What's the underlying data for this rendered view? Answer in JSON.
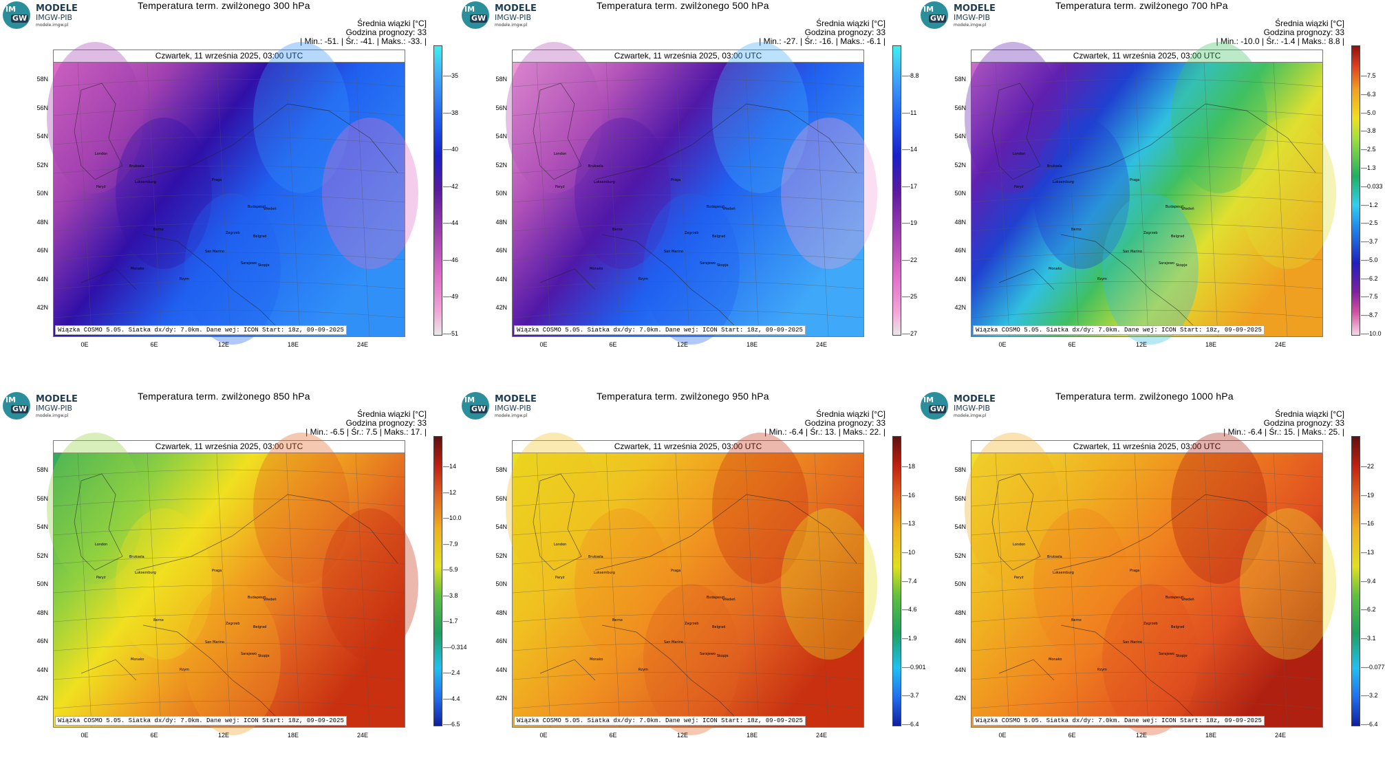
{
  "logo": {
    "badge_top": "IM",
    "badge_bottom": "GW",
    "name": "MODELE",
    "org": "IMGW-PIB",
    "url": "modele.imgw.pl"
  },
  "labels": {
    "mean_label": "Średnia wiązki [°C]",
    "forecast_hour": "Godzina prognozy: 33",
    "date": "Czwartek, 11 września 2025, 03:00 UTC",
    "footer": "Wiązka COSMO 5.05. Siatka dx/dy: 7.0km. Dane wej: ICON Start: 18z, 09-09-2025"
  },
  "axes": {
    "lat": [
      "58N",
      "56N",
      "54N",
      "52N",
      "50N",
      "48N",
      "46N",
      "44N",
      "42N"
    ],
    "lon": [
      "0E",
      "6E",
      "12E",
      "18E",
      "24E"
    ]
  },
  "cities": [
    "London",
    "Brukselа",
    "Paryż",
    "Luksemburg",
    "Praga",
    "Wiedeń",
    "Budapeszt",
    "Berno",
    "Zagrzeb",
    "Belgrad",
    "Monako",
    "San Marino",
    "Sarajewo",
    "Rzym",
    "Skopje"
  ],
  "panels": [
    {
      "title": "Temperatura term. zwilżonego 300 hPa",
      "stats": "| Min.:   -51. | Śr.:   -41. | Maks.:   -33. |",
      "scale": "cool",
      "ticks": [
        "-35",
        "-38",
        "-40",
        "-42",
        "-44",
        "-46",
        "-49",
        "-51"
      ]
    },
    {
      "title": "Temperatura term. zwilżonego 500 hPa",
      "stats": "| Min.:   -27. | Śr.:   -16. | Maks.:   -6.1 |",
      "scale": "cool",
      "ticks": [
        "-8.8",
        "-11",
        "-14",
        "-17",
        "-19",
        "-22",
        "-25",
        "-27"
      ]
    },
    {
      "title": "Temperatura term. zwilżonego 700 hPa",
      "stats": "| Min.:   -10.0 | Śr.:   -1.4 | Maks.:   8.8 |",
      "scale": "full",
      "ticks": [
        "7.5",
        "6.3",
        "5.0",
        "3.8",
        "2.5",
        "1.3",
        "0.033",
        "-1.2",
        "-2.5",
        "-3.7",
        "-5.0",
        "-6.2",
        "-7.5",
        "-8.7",
        "-10.0"
      ]
    },
    {
      "title": "Temperatura term. zwilżonego 850 hPa",
      "stats": "| Min.:   -6.5 | Śr.:   7.5 | Maks.:   17. |",
      "scale": "warm",
      "ticks": [
        "14",
        "12",
        "10.0",
        "7.9",
        "5.9",
        "3.8",
        "1.7",
        "-0.314",
        "-2.4",
        "-4.4",
        "-6.5"
      ]
    },
    {
      "title": "Temperatura term. zwilżonego 950 hPa",
      "stats": "| Min.:   -6.4 | Śr.:   13. | Maks.:   22. |",
      "scale": "warm",
      "ticks": [
        "18",
        "16",
        "13",
        "10",
        "7.4",
        "4.6",
        "1.9",
        "-0.901",
        "-3.7",
        "-6.4"
      ]
    },
    {
      "title": "Temperatura term. zwilżonego 1000 hPa",
      "stats": "| Min.:   -6.4 | Śr.:   15. | Maks.:   25. |",
      "scale": "warm",
      "ticks": [
        "22",
        "19",
        "16",
        "13",
        "9.4",
        "6.2",
        "3.1",
        "-0.077",
        "-3.2",
        "-6.4"
      ]
    }
  ]
}
